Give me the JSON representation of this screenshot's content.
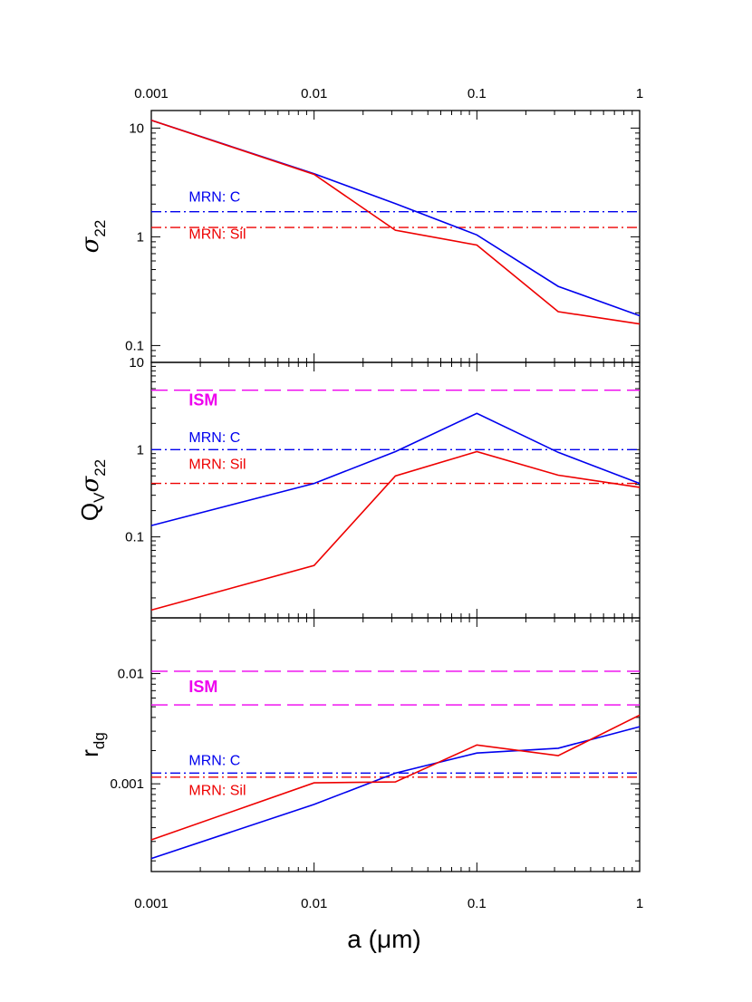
{
  "chart_data": {
    "type": "line",
    "x_scale": "log",
    "xlim": [
      0.001,
      1
    ],
    "x_ticks": [
      0.001,
      0.01,
      0.1,
      1
    ],
    "x_tick_labels": [
      "0.001",
      "0.01",
      "0.1",
      "1"
    ],
    "xlabel": "a (μm)",
    "colors": {
      "carbon": "#0000ee",
      "silicate": "#ee0000",
      "ism": "#ee00ee"
    },
    "panels": [
      {
        "id": "sigma22",
        "ylabel": "σ22",
        "y_scale": "log",
        "ylim": [
          0.07,
          14.5
        ],
        "y_ticks": [
          0.1,
          1,
          10
        ],
        "y_tick_labels": [
          "0.1",
          "1",
          "10"
        ],
        "series": [
          {
            "name": "C",
            "x": [
              0.001,
              0.01,
              0.0316,
              0.1,
              0.316,
              1
            ],
            "values": [
              11.8,
              3.8,
              2.02,
              1.04,
              0.35,
              0.188
            ]
          },
          {
            "name": "Sil",
            "x": [
              0.001,
              0.01,
              0.0316,
              0.1,
              0.316,
              1
            ],
            "values": [
              11.8,
              3.75,
              1.15,
              0.84,
              0.205,
              0.158
            ]
          }
        ],
        "hlines": [
          {
            "name": "MRN: C",
            "y": 1.7,
            "style": "dashdot",
            "color_key": "carbon"
          },
          {
            "name": "MRN: Sil",
            "y": 1.22,
            "style": "dashdot",
            "color_key": "silicate"
          }
        ],
        "annotations": [
          {
            "text": "MRN: C",
            "x": 0.0017,
            "y": 2.1,
            "color_key": "carbon",
            "kind": "ann"
          },
          {
            "text": "MRN: Sil",
            "x": 0.0017,
            "y": 0.96,
            "color_key": "silicate",
            "kind": "ann"
          }
        ]
      },
      {
        "id": "qv-sigma22",
        "ylabel": "Qvσ22",
        "y_scale": "log",
        "ylim": [
          0.0118,
          10
        ],
        "y_ticks": [
          0.1,
          1,
          10
        ],
        "y_tick_labels": [
          "0.1",
          "1",
          "10"
        ],
        "series": [
          {
            "name": "C",
            "x": [
              0.001,
              0.01,
              0.0316,
              0.1,
              0.316,
              1
            ],
            "values": [
              0.135,
              0.41,
              0.95,
              2.6,
              0.93,
              0.41
            ]
          },
          {
            "name": "Sil",
            "x": [
              0.001,
              0.01,
              0.0316,
              0.1,
              0.316,
              1
            ],
            "values": [
              0.0145,
              0.047,
              0.5,
              0.95,
              0.51,
              0.37
            ]
          }
        ],
        "hlines": [
          {
            "name": "ISM",
            "y": 4.8,
            "style": "dashed",
            "color_key": "ism"
          },
          {
            "name": "MRN: C",
            "y": 1.0,
            "style": "dashdot",
            "color_key": "carbon"
          },
          {
            "name": "MRN: Sil",
            "y": 0.41,
            "style": "dashdot",
            "color_key": "silicate"
          }
        ],
        "annotations": [
          {
            "text": "ISM",
            "x": 0.0017,
            "y": 3.2,
            "color_key": "ism",
            "kind": "ism"
          },
          {
            "text": "MRN: C",
            "x": 0.0017,
            "y": 1.22,
            "color_key": "carbon",
            "kind": "ann"
          },
          {
            "text": "MRN: Sil",
            "x": 0.0017,
            "y": 0.6,
            "color_key": "silicate",
            "kind": "ann"
          }
        ]
      },
      {
        "id": "r-dg",
        "ylabel": "rdg",
        "y_scale": "log",
        "ylim": [
          0.00016,
          0.032
        ],
        "y_ticks": [
          0.001,
          0.01
        ],
        "y_tick_labels": [
          "0.001",
          "0.01"
        ],
        "series": [
          {
            "name": "C",
            "x": [
              0.001,
              0.01,
              0.0316,
              0.1,
              0.316,
              1
            ],
            "values": [
              0.00021,
              0.00065,
              0.00125,
              0.0019,
              0.0021,
              0.0033
            ]
          },
          {
            "name": "Sil",
            "x": [
              0.001,
              0.01,
              0.0316,
              0.1,
              0.316,
              1
            ],
            "values": [
              0.00031,
              0.00102,
              0.00104,
              0.00225,
              0.0018,
              0.0042
            ]
          }
        ],
        "hlines": [
          {
            "name": "ISM upper",
            "y": 0.0105,
            "style": "dashed",
            "color_key": "ism"
          },
          {
            "name": "ISM lower",
            "y": 0.0052,
            "style": "dashed",
            "color_key": "ism"
          },
          {
            "name": "MRN: C",
            "y": 0.00125,
            "style": "dashdot",
            "color_key": "carbon"
          },
          {
            "name": "MRN: Sil",
            "y": 0.00115,
            "style": "dashdot",
            "color_key": "silicate"
          }
        ],
        "annotations": [
          {
            "text": "ISM",
            "x": 0.0017,
            "y": 0.0068,
            "color_key": "ism",
            "kind": "ism"
          },
          {
            "text": "MRN: C",
            "x": 0.0017,
            "y": 0.00148,
            "color_key": "carbon",
            "kind": "ann"
          },
          {
            "text": "MRN: Sil",
            "x": 0.0017,
            "y": 0.00079,
            "color_key": "silicate",
            "kind": "ann"
          }
        ]
      }
    ]
  }
}
